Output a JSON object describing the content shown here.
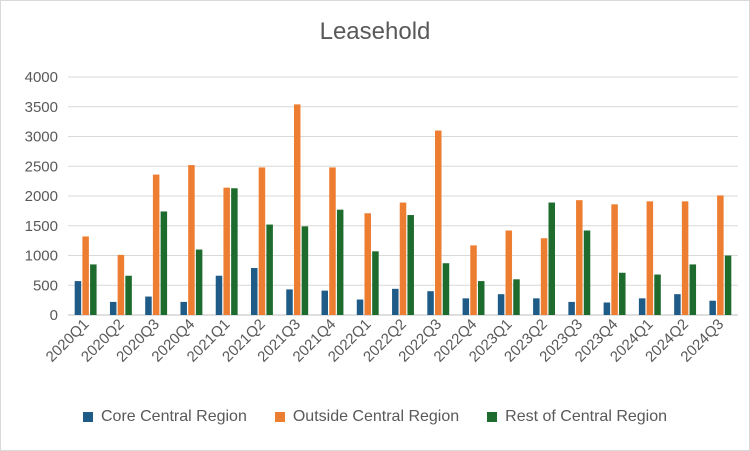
{
  "chart_data": {
    "type": "bar",
    "title": "Leasehold",
    "xlabel": "",
    "ylabel": "",
    "ylim": [
      0,
      4000
    ],
    "yticks": [
      0,
      500,
      1000,
      1500,
      2000,
      2500,
      3000,
      3500,
      4000
    ],
    "grid": true,
    "legend_position": "bottom",
    "categories": [
      "2020Q1",
      "2020Q2",
      "2020Q3",
      "2020Q4",
      "2021Q1",
      "2021Q2",
      "2021Q3",
      "2021Q4",
      "2022Q1",
      "2022Q2",
      "2022Q3",
      "2022Q4",
      "2023Q1",
      "2023Q2",
      "2023Q3",
      "2023Q4",
      "2024Q1",
      "2024Q2",
      "2024Q3"
    ],
    "series": [
      {
        "name": "Core Central Region",
        "color": "#1f5b87",
        "values": [
          570,
          220,
          310,
          220,
          660,
          790,
          430,
          410,
          260,
          440,
          400,
          280,
          350,
          280,
          220,
          210,
          280,
          350,
          240
        ]
      },
      {
        "name": "Outside Central Region",
        "color": "#ed7d31",
        "values": [
          1320,
          1010,
          2360,
          2520,
          2140,
          2480,
          3540,
          2480,
          1710,
          1890,
          3100,
          1170,
          1420,
          1290,
          1930,
          1860,
          1910,
          1910,
          2010
        ]
      },
      {
        "name": "Rest of Central Region",
        "color": "#1e6b2e",
        "values": [
          850,
          660,
          1740,
          1100,
          2130,
          1520,
          1490,
          1770,
          1070,
          1680,
          870,
          570,
          600,
          1890,
          1420,
          710,
          680,
          850,
          1000
        ]
      }
    ]
  }
}
